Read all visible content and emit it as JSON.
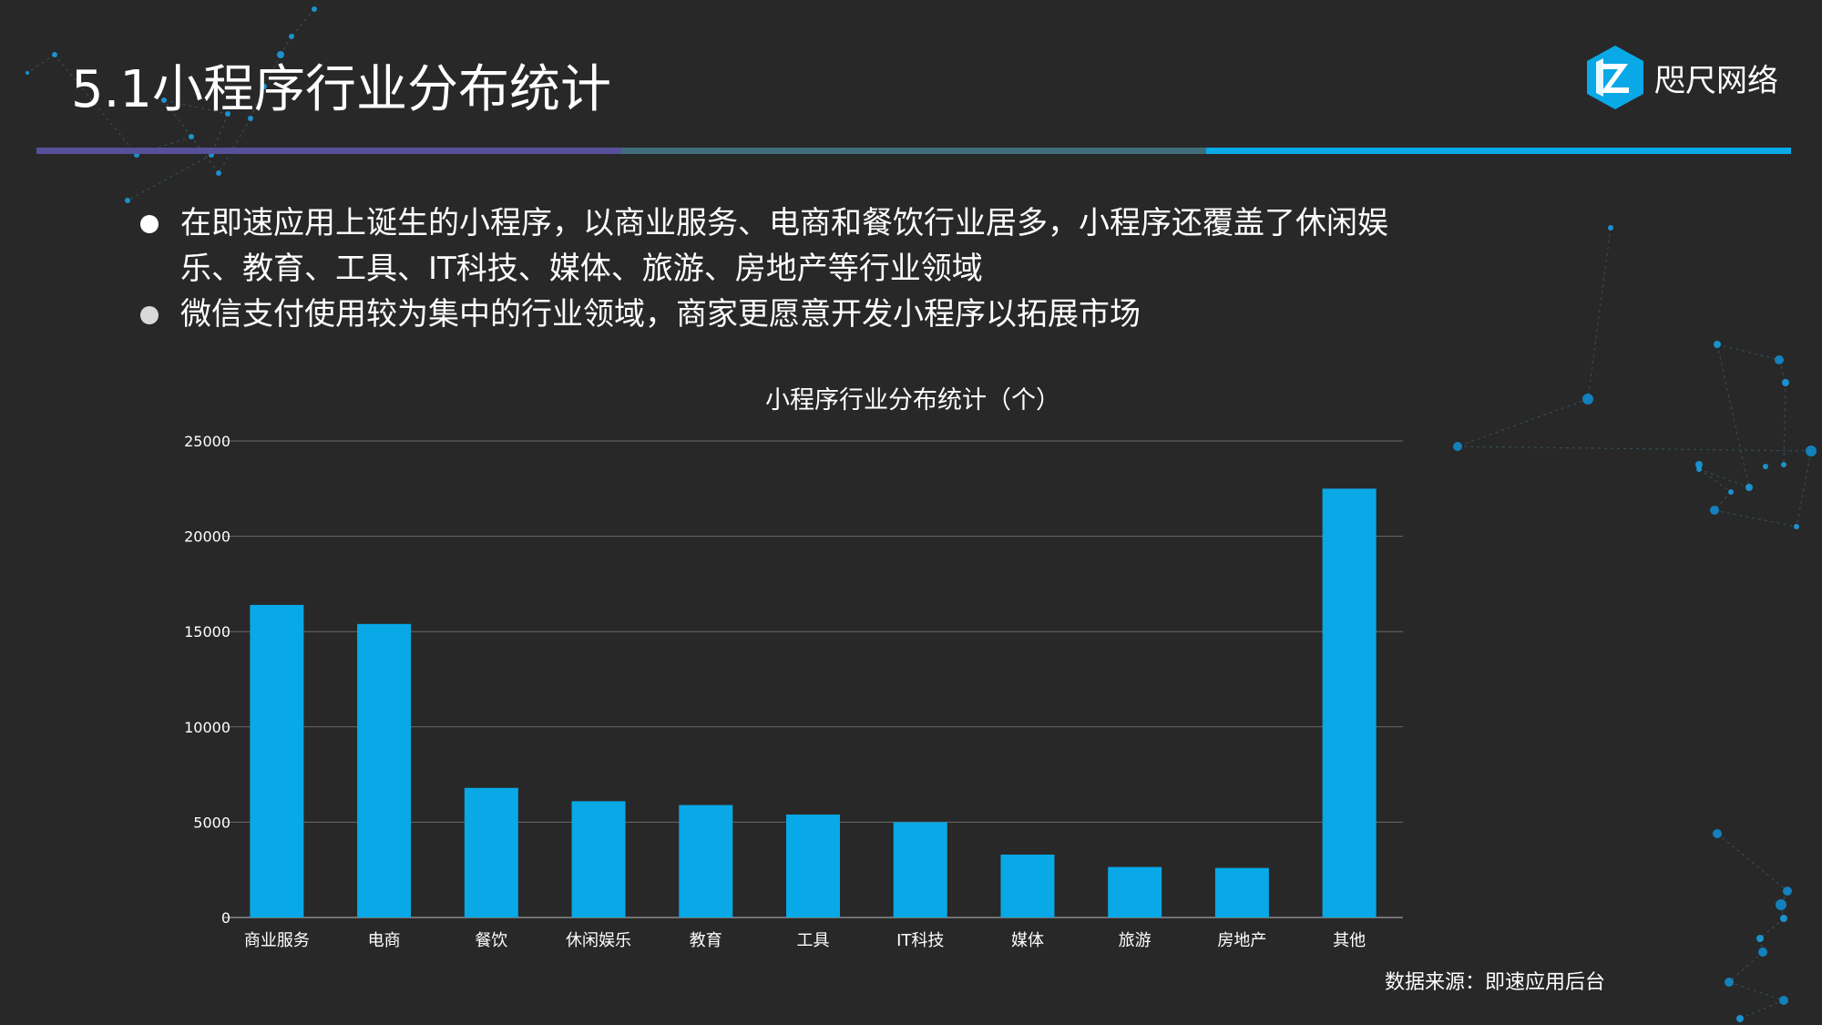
{
  "slide": {
    "title": "5.1小程序行业分布统计",
    "logo_text": "咫尺网络",
    "bullets": [
      "在即速应用上诞生的小程序，以商业服务、电商和餐饮行业居多，小程序还覆盖了休闲娱乐、教育、工具、IT科技、媒体、旅游、房地产等行业领域",
      "微信支付使用较为集中的行业领域，商家更愿意开发小程序以拓展市场"
    ],
    "source": "数据来源：即速应用后台"
  },
  "colors": {
    "background": "#282828",
    "accent": "#09a8e6",
    "bar_purple": "#57509a",
    "bar_teal": "#3f6e7a",
    "bar_blue": "#09a8e6",
    "gridline": "#6a6a6a"
  },
  "chart_data": {
    "type": "bar",
    "title": "小程序行业分布统计（个）",
    "categories": [
      "商业服务",
      "电商",
      "餐饮",
      "休闲娱乐",
      "教育",
      "工具",
      "IT科技",
      "媒体",
      "旅游",
      "房地产",
      "其他"
    ],
    "values": [
      16400,
      15400,
      6800,
      6100,
      5900,
      5400,
      5000,
      3300,
      2650,
      2600,
      22500
    ],
    "y_ticks": [
      "0",
      "5000",
      "10000",
      "15000",
      "20000",
      "25000"
    ],
    "ylim": [
      0,
      25000
    ],
    "grid": true,
    "bar_color": "#09a8e6"
  }
}
